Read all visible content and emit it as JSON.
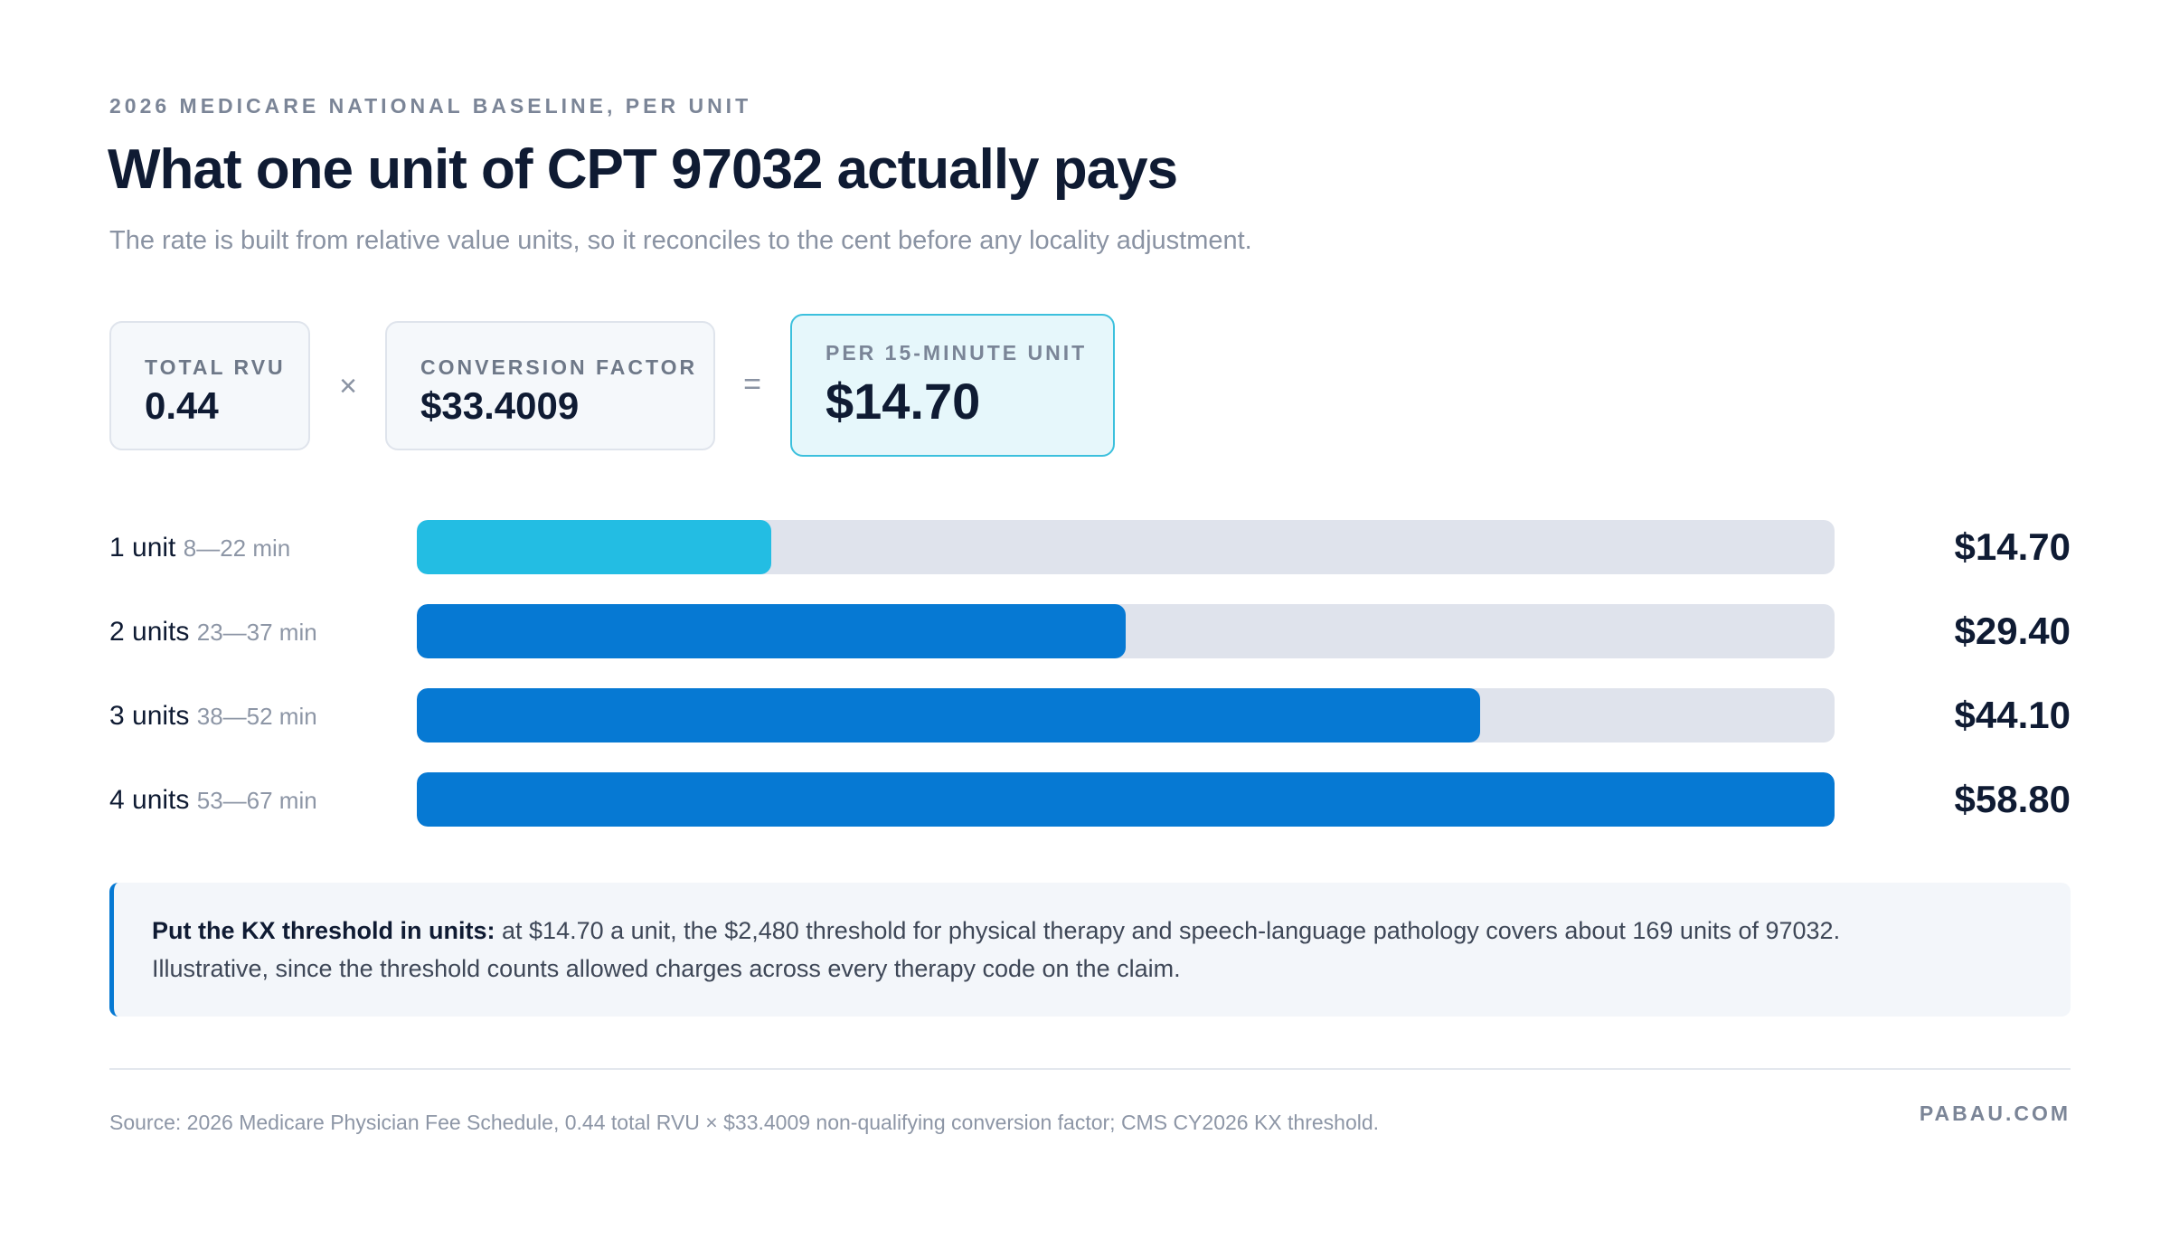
{
  "header": {
    "eyebrow": "2026 MEDICARE NATIONAL BASELINE, PER UNIT",
    "title": "What one unit of CPT 97032 actually pays",
    "subtitle": "The rate is built from relative value units, so it reconciles to the cent before any locality adjustment."
  },
  "formula": {
    "rvu_label": "TOTAL RVU",
    "rvu_value": "0.44",
    "times_symbol": "×",
    "cf_label": "CONVERSION FACTOR",
    "cf_value": "$33.4009",
    "equals_symbol": "=",
    "result_label": "PER 15-MINUTE UNIT",
    "result_value": "$14.70"
  },
  "chart_data": {
    "type": "bar",
    "orientation": "horizontal",
    "categories": [
      "1 unit",
      "2 units",
      "3 units",
      "4 units"
    ],
    "minute_ranges": [
      "8—22 min",
      "23—37 min",
      "38—52 min",
      "53—67 min"
    ],
    "values": [
      14.7,
      29.4,
      44.1,
      58.8
    ],
    "value_labels": [
      "$14.70",
      "$29.40",
      "$44.10",
      "$58.80"
    ],
    "xlim": [
      0,
      58.8
    ],
    "colors": {
      "first": "#23bde3",
      "rest": "#0679d3",
      "track": "#dfe3ec"
    }
  },
  "note": {
    "lead": "Put the KX threshold in units:",
    "body": "at $14.70 a unit, the $2,480 threshold for physical therapy and speech-language pathology covers about 169 units of 97032.",
    "body2": "Illustrative, since the threshold counts allowed charges across every therapy code on the claim."
  },
  "footer": {
    "source": "Source: 2026 Medicare Physician Fee Schedule, 0.44 total RVU × $33.4009 non-qualifying conversion factor; CMS CY2026 KX threshold.",
    "brand": "PABAU.COM"
  }
}
